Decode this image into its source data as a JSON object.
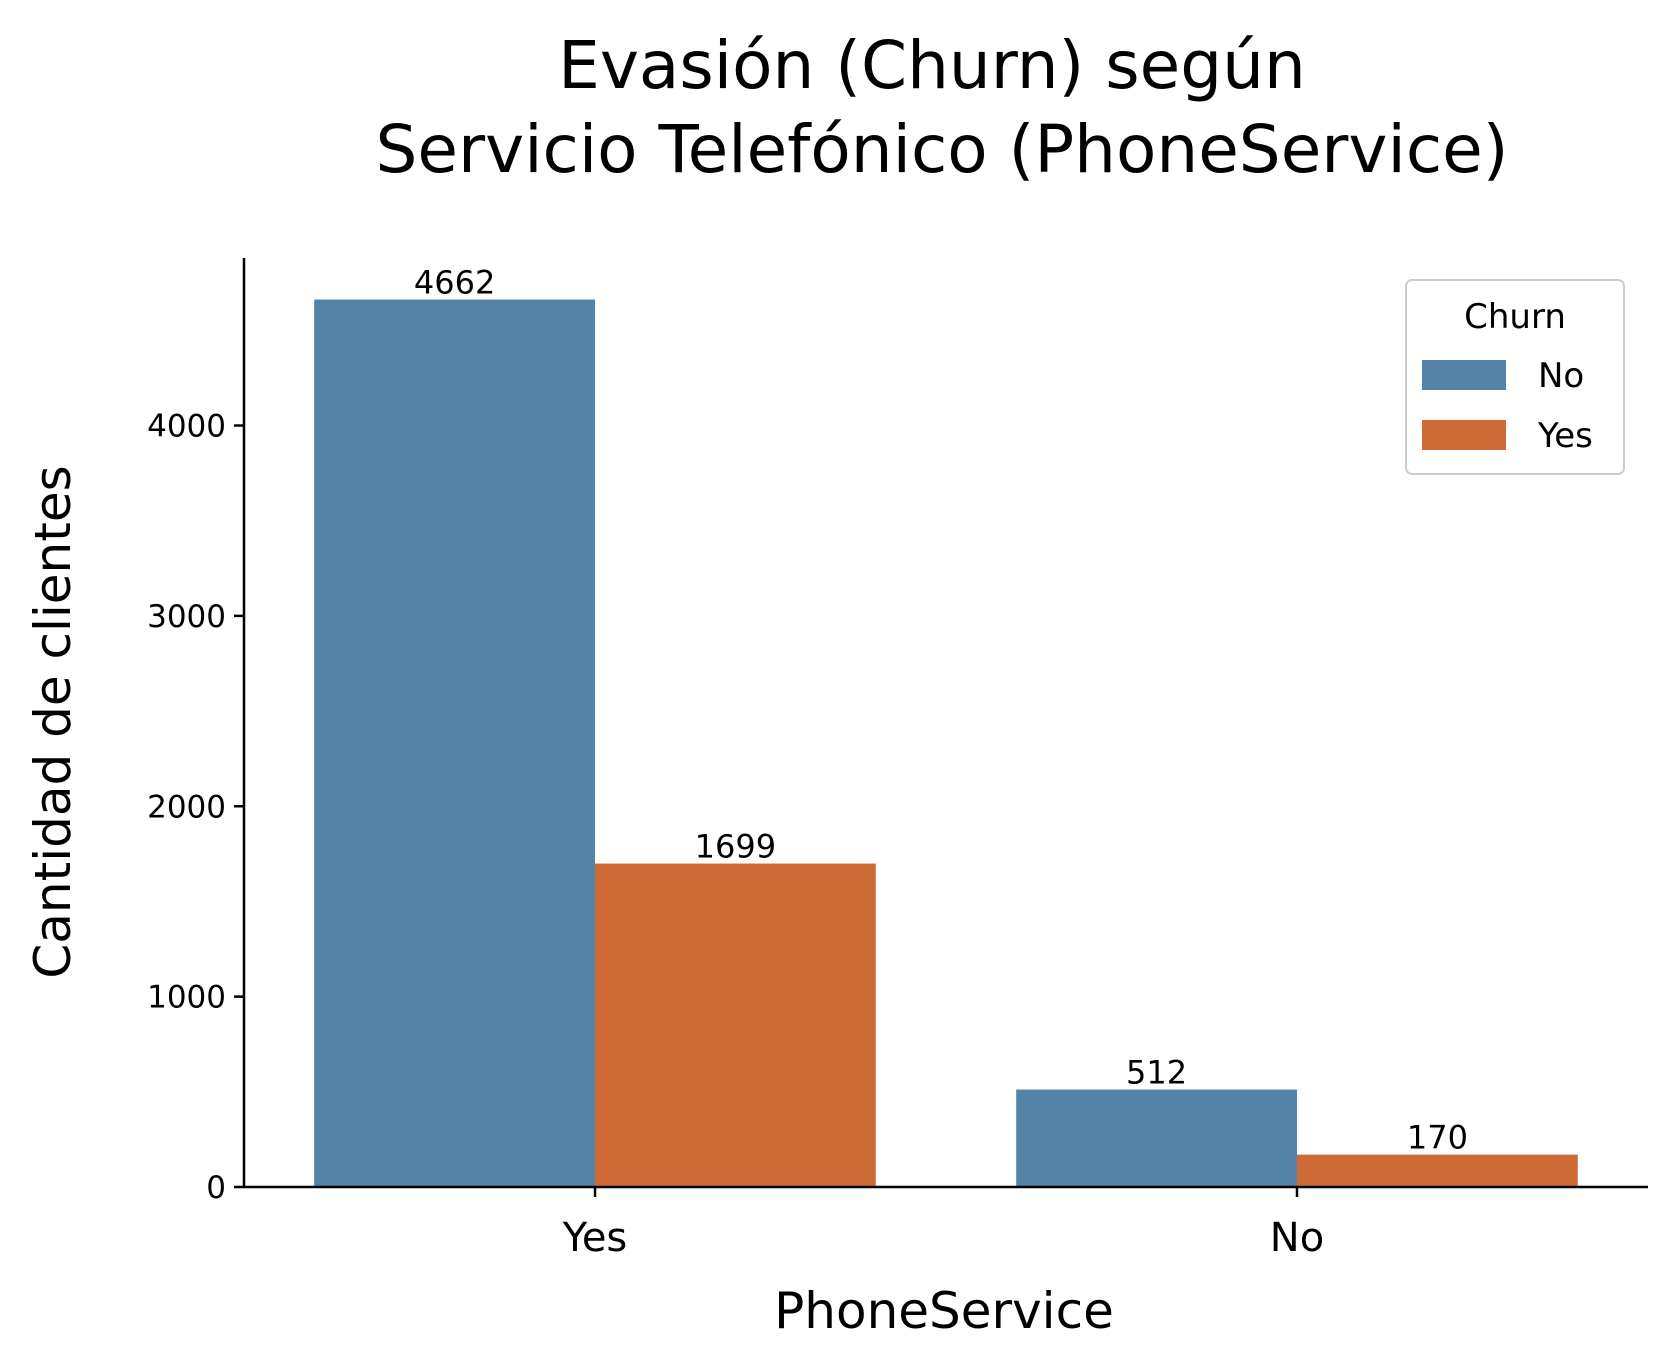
{
  "chart_data": {
    "type": "bar",
    "title_lines": [
      "Evasión (Churn) según",
      "Servicio Telefónico (PhoneService)"
    ],
    "xlabel": "PhoneService",
    "ylabel": "Cantidad de clientes",
    "categories": [
      "Yes",
      "No"
    ],
    "series": [
      {
        "name": "No",
        "values": [
          4662,
          512
        ],
        "color": "#5582a8"
      },
      {
        "name": "Yes",
        "values": [
          1699,
          170
        ],
        "color": "#cd6a36"
      }
    ],
    "ylim": [
      0,
      4880
    ],
    "yticks": [
      0,
      1000,
      2000,
      3000,
      4000
    ],
    "legend": {
      "title": "Churn",
      "placement": "top-right"
    },
    "grid": false
  }
}
